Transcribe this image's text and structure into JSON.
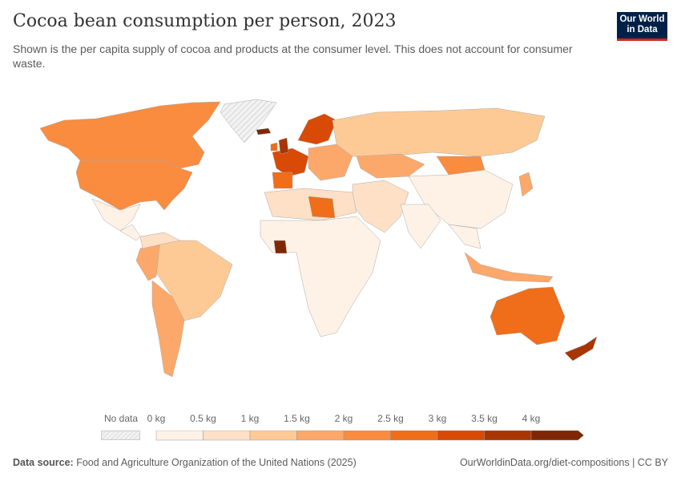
{
  "header": {
    "title": "Cocoa bean consumption per person, 2023",
    "subtitle": "Shown is the per capita supply of cocoa and products at the consumer level. This does not account for consumer waste.",
    "logo": "Our World in Data"
  },
  "legend": {
    "no_data": "No data",
    "labels": [
      "0 kg",
      "0.5 kg",
      "1 kg",
      "1.5 kg",
      "2 kg",
      "2.5 kg",
      "3 kg",
      "3.5 kg",
      "4 kg"
    ],
    "colors": [
      "#fef2e6",
      "#fde0c5",
      "#fdca95",
      "#fca86a",
      "#f98c3f",
      "#f06d19",
      "#d84a05",
      "#a83502",
      "#7f2704"
    ],
    "no_data_color": "#e6e6e6"
  },
  "footer": {
    "source_label": "Data source:",
    "source": "Food and Agriculture Organization of the United Nations (2025)",
    "link": "OurWorldinData.org/diet-compositions | CC BY"
  }
}
